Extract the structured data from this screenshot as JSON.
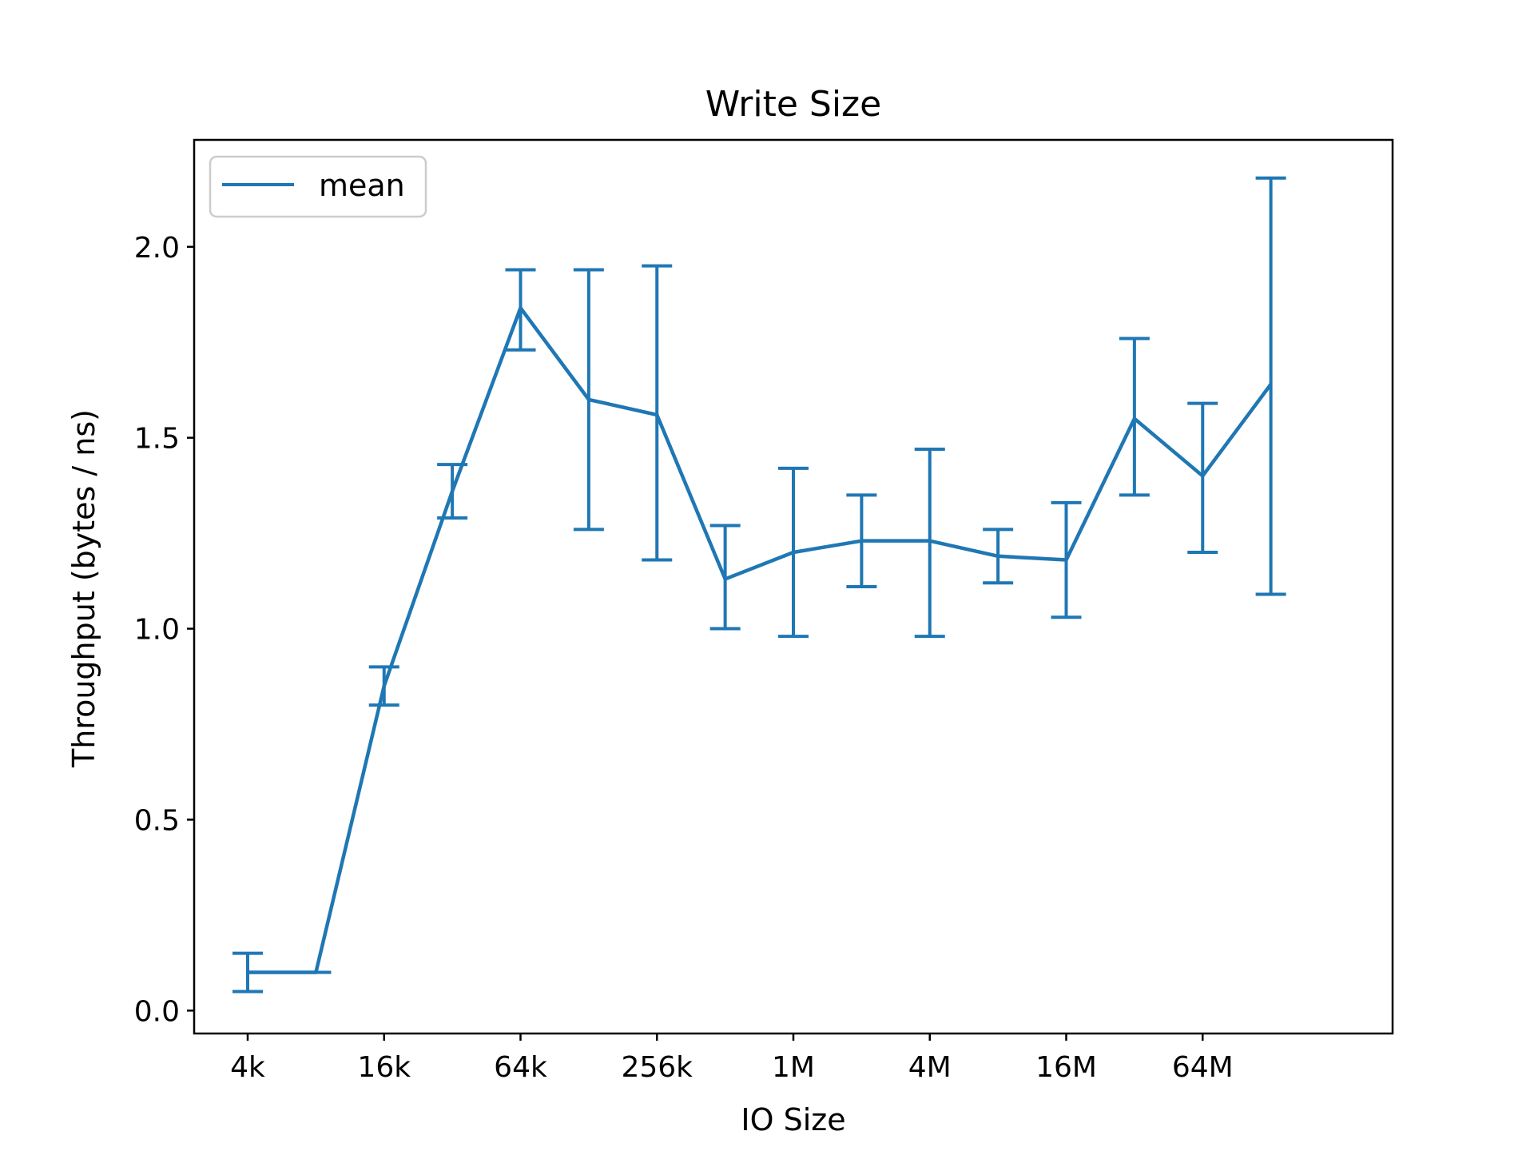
{
  "chart_data": {
    "type": "line",
    "title": "Write Size",
    "xlabel": "IO Size",
    "ylabel": "Throughput (bytes / ns)",
    "x": [
      "4k",
      "8k",
      "16k",
      "32k",
      "64k",
      "128k",
      "256k",
      "512k",
      "1M",
      "2M",
      "4M",
      "8M",
      "16M",
      "32M",
      "64M",
      "128M"
    ],
    "x_tick_labels": [
      "4k",
      "16k",
      "64k",
      "256k",
      "1M",
      "4M",
      "16M",
      "64M"
    ],
    "y_ticks": [
      0.0,
      0.5,
      1.0,
      1.5,
      2.0
    ],
    "y_tick_labels": [
      "0.0",
      "0.5",
      "1.0",
      "1.5",
      "2.0"
    ],
    "ylim": [
      -0.06,
      2.28
    ],
    "x_scale": "log2",
    "grid": false,
    "legend_position": "top-left",
    "series": [
      {
        "name": "mean",
        "color": "#1f77b4",
        "values": [
          0.1,
          0.1,
          0.85,
          1.36,
          1.84,
          1.6,
          1.56,
          1.13,
          1.2,
          1.23,
          1.23,
          1.19,
          1.18,
          1.55,
          1.4,
          1.64
        ],
        "error_low": [
          0.05,
          0.1,
          0.8,
          1.29,
          1.73,
          1.26,
          1.18,
          1.0,
          0.98,
          1.11,
          0.98,
          1.12,
          1.03,
          1.35,
          1.2,
          1.09
        ],
        "error_high": [
          0.15,
          0.1,
          0.9,
          1.43,
          1.94,
          1.94,
          1.95,
          1.27,
          1.42,
          1.35,
          1.47,
          1.26,
          1.33,
          1.76,
          1.59,
          2.18
        ]
      }
    ]
  }
}
